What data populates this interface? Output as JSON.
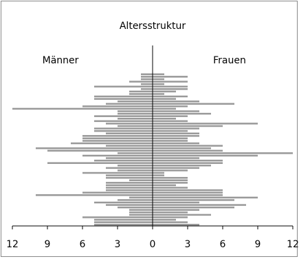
{
  "chart_data": {
    "type": "pyramid",
    "title": "Altersstruktur",
    "categories": [
      null,
      null,
      null,
      null,
      null,
      null,
      null,
      null,
      null,
      null,
      null,
      null,
      null,
      null,
      null,
      null,
      null,
      null,
      null,
      null,
      null,
      null,
      null,
      null,
      null,
      null,
      null,
      null,
      null,
      null,
      null,
      null,
      null,
      null,
      null,
      null,
      null,
      null,
      null,
      null,
      null,
      null,
      null,
      null,
      null,
      null,
      null,
      null,
      null,
      null,
      null,
      null,
      null,
      null,
      null,
      null,
      null,
      null,
      null,
      null,
      null,
      null
    ],
    "series": [
      {
        "name": "Männer",
        "color": "#999999",
        "values": [
          1,
          1,
          1,
          2,
          1,
          5,
          1,
          2,
          2,
          5,
          5,
          3,
          4,
          6,
          12,
          3,
          3,
          5,
          3,
          5,
          4,
          3,
          5,
          5,
          4,
          6,
          6,
          6,
          7,
          4,
          10,
          9,
          3,
          6,
          4,
          5,
          9,
          3,
          4,
          3,
          6,
          4,
          4,
          2,
          4,
          4,
          4,
          4,
          6,
          10,
          2,
          3,
          5,
          4,
          3,
          2,
          2,
          2,
          6,
          5,
          5,
          5
        ]
      },
      {
        "name": "Frauen",
        "color": "#999999",
        "values": [
          1,
          3,
          1,
          3,
          1,
          3,
          3,
          2,
          1,
          3,
          2,
          4,
          7,
          3,
          2,
          4,
          5,
          3,
          2,
          3,
          9,
          6,
          4,
          3,
          4,
          4,
          3,
          3,
          4,
          6,
          5,
          6,
          12,
          9,
          4,
          6,
          6,
          5,
          4,
          3,
          1,
          1,
          3,
          3,
          3,
          2,
          3,
          6,
          6,
          6,
          9,
          7,
          4,
          8,
          7,
          4,
          3,
          5,
          3,
          2,
          3,
          4
        ]
      }
    ],
    "xlim": [
      -12,
      12
    ],
    "xticks": [
      {
        "value": -12,
        "label": "12"
      },
      {
        "value": -9,
        "label": "9"
      },
      {
        "value": -6,
        "label": "6"
      },
      {
        "value": -3,
        "label": "3"
      },
      0,
      3,
      6,
      9,
      12
    ]
  }
}
